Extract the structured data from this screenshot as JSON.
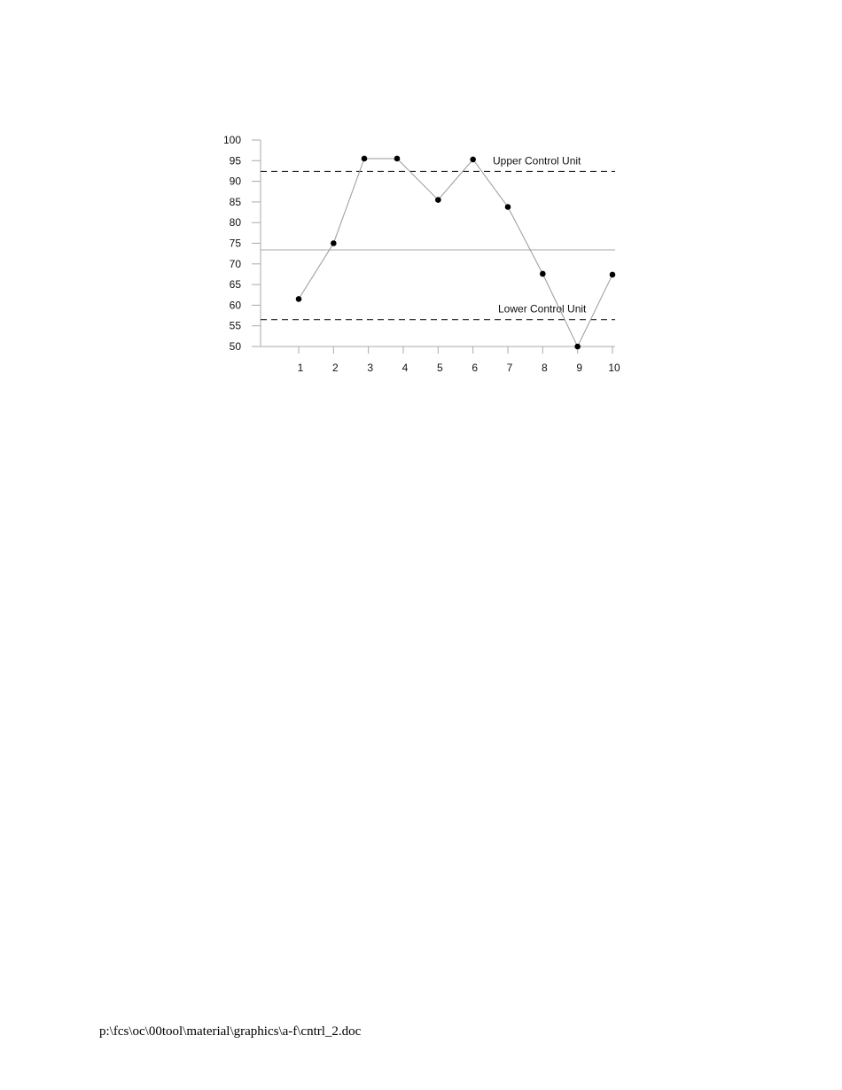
{
  "chart_data": {
    "type": "line",
    "title": "",
    "xlabel": "",
    "ylabel": "",
    "x_tick_labels": [
      "1",
      "2",
      "3",
      "4",
      "5",
      "6",
      "7",
      "8",
      "9",
      "10"
    ],
    "y_tick_labels": [
      "100",
      "95",
      "90",
      "85",
      "80",
      "75",
      "70",
      "65",
      "60",
      "55",
      "50"
    ],
    "ylim": [
      50,
      100
    ],
    "grid": false,
    "x": [
      1,
      2,
      3,
      4,
      5,
      6,
      7,
      8,
      9,
      10
    ],
    "values": [
      61.5,
      75,
      95.5,
      95.5,
      85.5,
      95.3,
      83.8,
      67.6,
      50,
      67.4
    ],
    "upper_control": {
      "label": "Upper Control Unit",
      "value": 92.4
    },
    "center_line": {
      "value": 73.4
    },
    "lower_control": {
      "label": "Lower Control Unit",
      "value": 56.5
    }
  },
  "footer": {
    "path": "p:\\fcs\\oc\\00tool\\material\\graphics\\a-f\\cntrl_2.doc"
  }
}
